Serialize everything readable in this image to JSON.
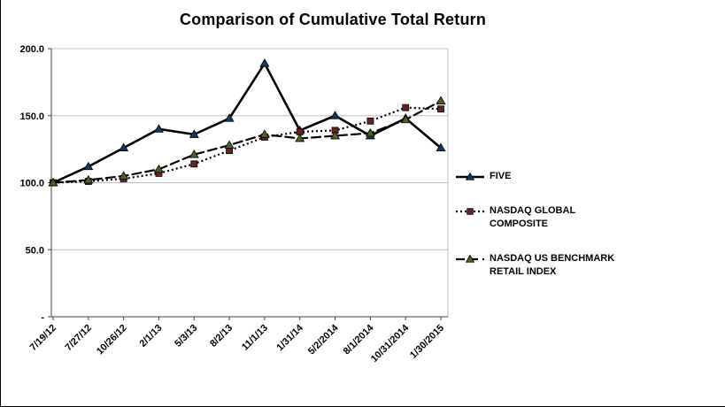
{
  "title": "Comparison of Cumulative Total Return",
  "chart_data": {
    "type": "line",
    "title": "Comparison of Cumulative Total Return",
    "xlabel": "",
    "ylabel": "",
    "categories": [
      "7/19/12",
      "7/27/12",
      "10/26/12",
      "2/1/13",
      "5/3/13",
      "8/2/13",
      "11/1/13",
      "1/31/14",
      "5/2/2014",
      "8/1/2014",
      "10/31/2014",
      "1/30/2015"
    ],
    "series": [
      {
        "name": "FIVE",
        "values": [
          100,
          112,
          126,
          140,
          136,
          148,
          189,
          139,
          150,
          135,
          148,
          126
        ],
        "line_style": "solid",
        "line_color": "#000000",
        "marker": "triangle",
        "marker_color": "#17375E"
      },
      {
        "name": "NASDAQ GLOBAL COMPOSITE",
        "values": [
          100,
          101,
          103,
          107,
          114,
          124,
          134,
          138,
          139,
          146,
          156,
          155
        ],
        "line_style": "dotted",
        "line_color": "#000000",
        "marker": "square",
        "marker_color": "#632423"
      },
      {
        "name": "NASDAQ US BENCHMARK RETAIL INDEX",
        "values": [
          100,
          102,
          105,
          110,
          121,
          128,
          136,
          133,
          135,
          137,
          147,
          161
        ],
        "line_style": "dashed",
        "line_color": "#000000",
        "marker": "triangle",
        "marker_color": "#4F6228"
      }
    ],
    "ylim": [
      0,
      200
    ],
    "yticks": [
      0,
      50,
      100,
      150,
      200
    ],
    "ytick_labels": [
      "-",
      "50.0",
      "100.0",
      "150.0",
      "200.0"
    ],
    "grid": true,
    "gridline_color": "#BFBFBF",
    "axis_color": "#404040",
    "legend_position": "right"
  }
}
